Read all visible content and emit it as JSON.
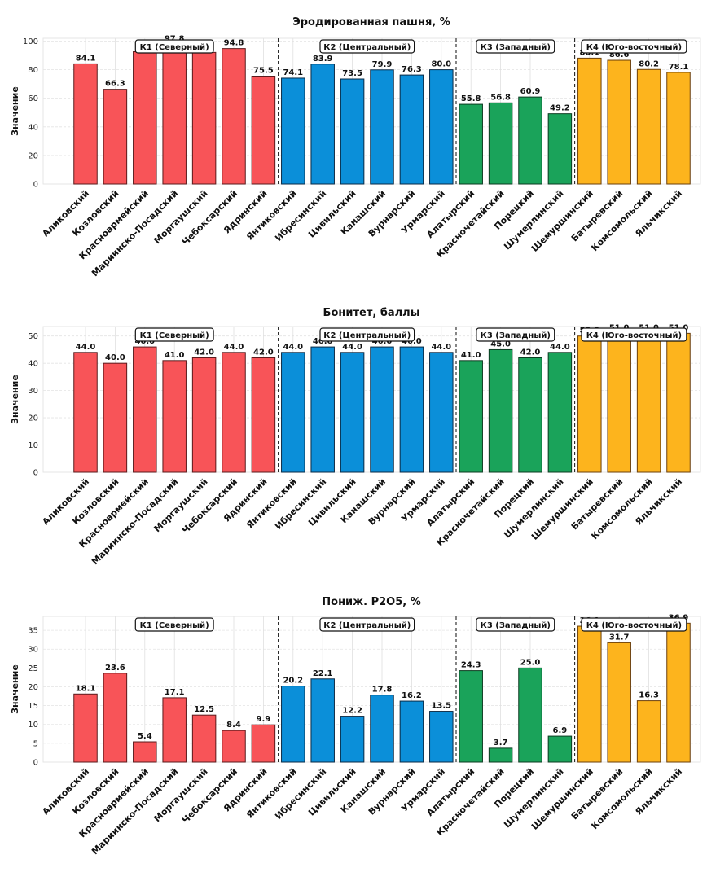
{
  "chart_data": [
    {
      "type": "bar",
      "title": "Эродированная пашня, %",
      "xlabel": "",
      "ylabel": "Значение",
      "ylim": [
        0,
        102
      ],
      "yticks": [
        0,
        20,
        40,
        60,
        80,
        100
      ],
      "grid": true,
      "categories": [
        "Аликовский",
        "Козловский",
        "Красноармейский",
        "Мариинско-Посадский",
        "Моргаушский",
        "Чебоксарский",
        "Ядринский",
        "Янтиковский",
        "Ибресинский",
        "Цивильский",
        "Канашский",
        "Вурнарский",
        "Урмарский",
        "Алатырский",
        "Красночетайский",
        "Порецкий",
        "Шумерлинский",
        "Шемуршинский",
        "Батыревский",
        "Комсомольский",
        "Яльчикский"
      ],
      "values": [
        84.1,
        66.3,
        92.6,
        97.8,
        92.1,
        94.8,
        75.5,
        74.1,
        83.9,
        73.5,
        79.9,
        76.3,
        80.0,
        55.8,
        56.8,
        60.9,
        49.2,
        88.1,
        86.6,
        80.2,
        78.1
      ]
    },
    {
      "type": "bar",
      "title": "Бонитет, баллы",
      "xlabel": "",
      "ylabel": "Значение",
      "ylim": [
        0,
        53.5
      ],
      "yticks": [
        0,
        10,
        20,
        30,
        40,
        50
      ],
      "grid": true,
      "categories": [
        "Аликовский",
        "Козловский",
        "Красноармейский",
        "Мариинско-Посадский",
        "Моргаушский",
        "Чебоксарский",
        "Ядринский",
        "Янтиковский",
        "Ибресинский",
        "Цивильский",
        "Канашский",
        "Вурнарский",
        "Урмарский",
        "Алатырский",
        "Красночетайский",
        "Порецкий",
        "Шумерлинский",
        "Шемуршинский",
        "Батыревский",
        "Комсомольский",
        "Яльчикский"
      ],
      "values": [
        44.0,
        40.0,
        46.0,
        41.0,
        42.0,
        44.0,
        42.0,
        44.0,
        46.0,
        44.0,
        46.0,
        46.0,
        44.0,
        41.0,
        45.0,
        42.0,
        44.0,
        50.0,
        51.0,
        51.0,
        51.0
      ]
    },
    {
      "type": "bar",
      "title": "Пониж. P2O5, %",
      "xlabel": "",
      "ylabel": "Значение",
      "ylim": [
        0,
        38.7
      ],
      "yticks": [
        0,
        5,
        10,
        15,
        20,
        25,
        30,
        35
      ],
      "grid": true,
      "categories": [
        "Аликовский",
        "Козловский",
        "Красноармейский",
        "Мариинско-Посадский",
        "Моргаушский",
        "Чебоксарский",
        "Ядринский",
        "Янтиковский",
        "Ибресинский",
        "Цивильский",
        "Канашский",
        "Вурнарский",
        "Урмарский",
        "Алатырский",
        "Красночетайский",
        "Порецкий",
        "Шумерлинский",
        "Шемуршинский",
        "Батыревский",
        "Комсомольский",
        "Яльчикский"
      ],
      "values": [
        18.1,
        23.6,
        5.4,
        17.1,
        12.5,
        8.4,
        9.9,
        20.2,
        22.1,
        12.2,
        17.8,
        16.2,
        13.5,
        24.3,
        3.7,
        25.0,
        6.9,
        36.1,
        31.7,
        16.3,
        36.9
      ]
    }
  ],
  "clusters": [
    {
      "label": "К1 (Северный)",
      "start": 0,
      "end": 6,
      "color": "#f85458"
    },
    {
      "label": "К2 (Центральный)",
      "start": 7,
      "end": 12,
      "color": "#0b8fd9"
    },
    {
      "label": "К3 (Западный)",
      "start": 13,
      "end": 16,
      "color": "#1aa35a"
    },
    {
      "label": "К4 (Юго-восточный)",
      "start": 17,
      "end": 20,
      "color": "#fdb41d"
    }
  ]
}
